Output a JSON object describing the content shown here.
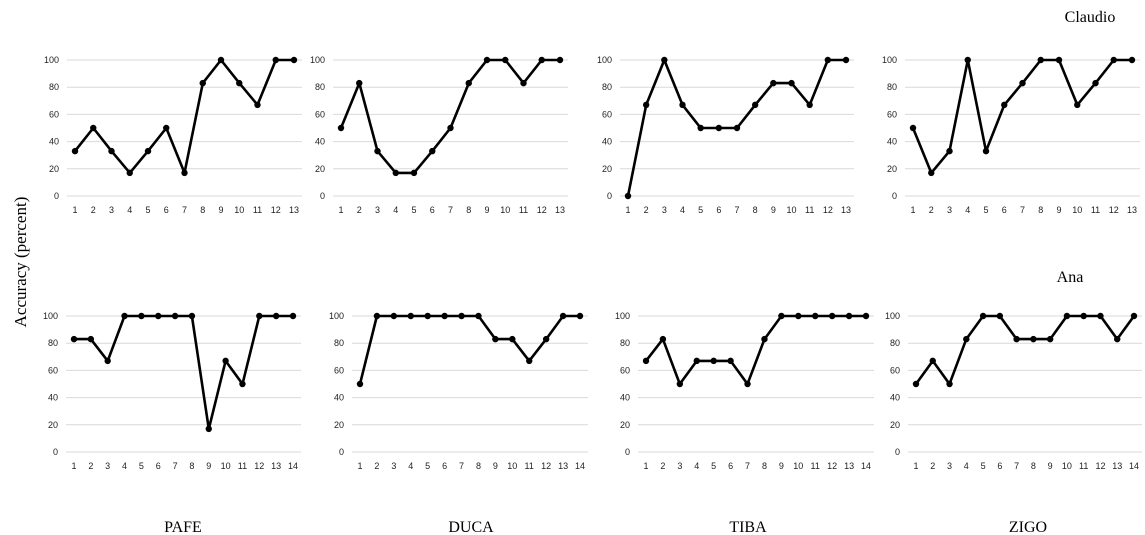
{
  "figure": {
    "ylabel": "Accuracy (percent)",
    "column_labels": [
      "PAFE",
      "DUCA",
      "TIBA",
      "ZIGO"
    ],
    "row_labels": [
      "Claudio",
      "Ana"
    ]
  },
  "chart_data": [
    {
      "type": "line",
      "participant": "Claudio",
      "condition": "PAFE",
      "ylim": [
        0,
        100
      ],
      "y_ticks": [
        0,
        20,
        40,
        60,
        80,
        100
      ],
      "grid": true,
      "x": [
        1,
        2,
        3,
        4,
        5,
        6,
        7,
        8,
        9,
        10,
        11,
        12,
        13
      ],
      "values": [
        33,
        50,
        33,
        17,
        33,
        50,
        17,
        83,
        100,
        83,
        67,
        100,
        100
      ]
    },
    {
      "type": "line",
      "participant": "Claudio",
      "condition": "DUCA",
      "ylim": [
        0,
        100
      ],
      "y_ticks": [
        0,
        20,
        40,
        60,
        80,
        100
      ],
      "grid": true,
      "x": [
        1,
        2,
        3,
        4,
        5,
        6,
        7,
        8,
        9,
        10,
        11,
        12,
        13
      ],
      "values": [
        50,
        83,
        33,
        17,
        17,
        33,
        50,
        83,
        100,
        100,
        83,
        100,
        100
      ]
    },
    {
      "type": "line",
      "participant": "Claudio",
      "condition": "TIBA",
      "ylim": [
        0,
        100
      ],
      "y_ticks": [
        0,
        20,
        40,
        60,
        80,
        100
      ],
      "grid": true,
      "x": [
        1,
        2,
        3,
        4,
        5,
        6,
        7,
        8,
        9,
        10,
        11,
        12,
        13
      ],
      "values": [
        0,
        67,
        100,
        67,
        50,
        50,
        50,
        67,
        83,
        83,
        67,
        100,
        100
      ]
    },
    {
      "type": "line",
      "participant": "Claudio",
      "condition": "ZIGO",
      "ylim": [
        0,
        100
      ],
      "y_ticks": [
        0,
        20,
        40,
        60,
        80,
        100
      ],
      "grid": true,
      "x": [
        1,
        2,
        3,
        4,
        5,
        6,
        7,
        8,
        9,
        10,
        11,
        12,
        13
      ],
      "values": [
        50,
        17,
        33,
        100,
        33,
        67,
        83,
        100,
        100,
        67,
        83,
        100,
        100
      ]
    },
    {
      "type": "line",
      "participant": "Ana",
      "condition": "PAFE",
      "ylim": [
        0,
        100
      ],
      "y_ticks": [
        0,
        20,
        40,
        60,
        80,
        100
      ],
      "grid": true,
      "x": [
        1,
        2,
        3,
        4,
        5,
        6,
        7,
        8,
        9,
        10,
        11,
        12,
        13,
        14
      ],
      "values": [
        83,
        83,
        67,
        100,
        100,
        100,
        100,
        100,
        17,
        67,
        50,
        100,
        100,
        100
      ]
    },
    {
      "type": "line",
      "participant": "Ana",
      "condition": "DUCA",
      "ylim": [
        0,
        100
      ],
      "y_ticks": [
        0,
        20,
        40,
        60,
        80,
        100
      ],
      "grid": true,
      "x": [
        1,
        2,
        3,
        4,
        5,
        6,
        7,
        8,
        9,
        10,
        11,
        12,
        13,
        14
      ],
      "values": [
        50,
        100,
        100,
        100,
        100,
        100,
        100,
        100,
        83,
        83,
        67,
        83,
        100,
        100
      ]
    },
    {
      "type": "line",
      "participant": "Ana",
      "condition": "TIBA",
      "ylim": [
        0,
        100
      ],
      "y_ticks": [
        0,
        20,
        40,
        60,
        80,
        100
      ],
      "grid": true,
      "x": [
        1,
        2,
        3,
        4,
        5,
        6,
        7,
        8,
        9,
        10,
        11,
        12,
        13,
        14
      ],
      "values": [
        67,
        83,
        50,
        67,
        67,
        67,
        50,
        83,
        100,
        100,
        100,
        100,
        100,
        100
      ]
    },
    {
      "type": "line",
      "participant": "Ana",
      "condition": "ZIGO",
      "ylim": [
        0,
        100
      ],
      "y_ticks": [
        0,
        20,
        40,
        60,
        80,
        100
      ],
      "grid": true,
      "x": [
        1,
        2,
        3,
        4,
        5,
        6,
        7,
        8,
        9,
        10,
        11,
        12,
        13,
        14
      ],
      "values": [
        50,
        67,
        50,
        83,
        100,
        100,
        83,
        83,
        83,
        100,
        100,
        100,
        83,
        100
      ]
    }
  ]
}
